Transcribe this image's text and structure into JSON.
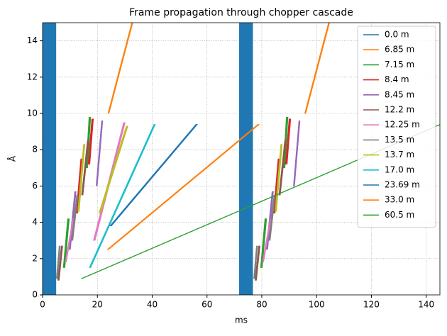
{
  "chart_data": {
    "type": "polygon",
    "title": "Frame propagation through chopper cascade",
    "xlabel": "ms",
    "ylabel": "Å",
    "xlim": [
      0,
      145
    ],
    "ylim": [
      0,
      15
    ],
    "xticks": [
      0,
      20,
      40,
      60,
      80,
      100,
      120,
      140
    ],
    "yticks": [
      0,
      2,
      4,
      6,
      8,
      10,
      12,
      14
    ],
    "grid": true,
    "legend": "upper right",
    "series": [
      {
        "name": "0.0 m",
        "color": "#1f77b4",
        "polygons": [
          {
            "x": [
              0,
              4.9,
              4.9,
              0
            ],
            "y": [
              0,
              0,
              15,
              15
            ]
          },
          {
            "x": [
              71.8,
              76.7,
              76.7,
              71.8
            ],
            "y": [
              0,
              0,
              15,
              15
            ]
          }
        ]
      },
      {
        "name": "6.85 m",
        "color": "#ff7f0e",
        "polygons": [
          {
            "x": [
              23.8,
              24.3,
              29.5,
              29.0
            ],
            "y": [
              10,
              10,
              13,
              13
            ]
          },
          {
            "x": [
              29.0,
              29.5,
              33.0,
              32.5
            ],
            "y": [
              13,
              13,
              15,
              15
            ]
          },
          {
            "x": [
              95.6,
              96.1,
              101.3,
              100.8
            ],
            "y": [
              10,
              10,
              13,
              13
            ]
          },
          {
            "x": [
              100.8,
              101.3,
              104.8,
              104.3
            ],
            "y": [
              13,
              13,
              15,
              15
            ]
          }
        ]
      },
      {
        "name": "7.15 m",
        "color": "#2ca02c",
        "polygons": [
          {
            "x": [
              7.5,
              8.2,
              9.8,
              9.1
            ],
            "y": [
              1.5,
              1.5,
              4.2,
              4.2
            ]
          },
          {
            "x": [
              15.8,
              16.5,
              17.6,
              16.9
            ],
            "y": [
              7.0,
              7.0,
              9.8,
              9.8
            ]
          },
          {
            "x": [
              79.5,
              80.2,
              81.8,
              81.1
            ],
            "y": [
              1.5,
              1.5,
              4.2,
              4.2
            ]
          },
          {
            "x": [
              87.8,
              88.5,
              89.6,
              88.9
            ],
            "y": [
              7.0,
              7.0,
              9.8,
              9.8
            ]
          }
        ]
      },
      {
        "name": "8.4 m",
        "color": "#d62728",
        "polygons": [
          {
            "x": [
              12.2,
              12.9,
              14.6,
              13.9
            ],
            "y": [
              4.5,
              4.5,
              7.5,
              7.5
            ]
          },
          {
            "x": [
              16.6,
              17.3,
              18.6,
              17.9
            ],
            "y": [
              7.2,
              7.2,
              9.7,
              9.7
            ]
          },
          {
            "x": [
              84.2,
              84.9,
              86.6,
              85.9
            ],
            "y": [
              4.5,
              4.5,
              7.5,
              7.5
            ]
          },
          {
            "x": [
              88.6,
              89.3,
              90.6,
              89.9
            ],
            "y": [
              7.2,
              7.2,
              9.7,
              9.7
            ]
          }
        ]
      },
      {
        "name": "8.45 m",
        "color": "#9467bd",
        "polygons": [
          {
            "x": [
              9.6,
              10.2,
              12.3,
              11.7
            ],
            "y": [
              2.5,
              2.5,
              5.7,
              5.7
            ]
          },
          {
            "x": [
              19.5,
              20.0,
              22.0,
              21.5
            ],
            "y": [
              6.0,
              6.0,
              9.6,
              9.6
            ]
          },
          {
            "x": [
              81.6,
              82.2,
              84.3,
              83.7
            ],
            "y": [
              2.5,
              2.5,
              5.7,
              5.7
            ]
          },
          {
            "x": [
              91.5,
              92.0,
              94.0,
              93.5
            ],
            "y": [
              6.0,
              6.0,
              9.6,
              9.6
            ]
          }
        ]
      },
      {
        "name": "12.2 m",
        "color": "#8c564b",
        "polygons": [
          {
            "x": [
              5.5,
              6.1,
              7.4,
              6.8
            ],
            "y": [
              0.8,
              0.8,
              2.7,
              2.7
            ]
          },
          {
            "x": [
              14.2,
              14.8,
              16.9,
              16.3
            ],
            "y": [
              5.5,
              5.5,
              8.5,
              8.5
            ]
          },
          {
            "x": [
              77.5,
              78.1,
              79.4,
              78.8
            ],
            "y": [
              0.8,
              0.8,
              2.7,
              2.7
            ]
          },
          {
            "x": [
              86.2,
              86.8,
              88.9,
              88.3
            ],
            "y": [
              5.5,
              5.5,
              8.5,
              8.5
            ]
          }
        ]
      },
      {
        "name": "12.25 m",
        "color": "#e377c2",
        "polygons": [
          {
            "x": [
              8.2,
              8.7,
              11.5,
              11.0
            ],
            "y": [
              1.8,
              1.8,
              4.2,
              4.2
            ]
          },
          {
            "x": [
              18.5,
              19.2,
              30.2,
              29.5
            ],
            "y": [
              3.0,
              3.0,
              9.5,
              9.5
            ]
          },
          {
            "x": [
              80.2,
              80.7,
              83.5,
              83.0
            ],
            "y": [
              1.8,
              1.8,
              4.2,
              4.2
            ]
          }
        ]
      },
      {
        "name": "13.5 m",
        "color": "#7f7f7f",
        "polygons": [
          {
            "x": [
              5.0,
              5.5,
              6.5,
              6.0
            ],
            "y": [
              0.9,
              0.9,
              2.7,
              2.7
            ]
          },
          {
            "x": [
              10.5,
              11.1,
              13.0,
              12.4
            ],
            "y": [
              3.0,
              3.0,
              5.5,
              5.5
            ]
          },
          {
            "x": [
              77.0,
              77.5,
              78.5,
              78.0
            ],
            "y": [
              0.9,
              0.9,
              2.7,
              2.7
            ]
          },
          {
            "x": [
              82.5,
              83.1,
              85.0,
              84.4
            ],
            "y": [
              3.0,
              3.0,
              5.5,
              5.5
            ]
          }
        ]
      },
      {
        "name": "13.7 m",
        "color": "#bcbd22",
        "polygons": [
          {
            "x": [
              12.8,
              13.4,
              15.5,
              14.9
            ],
            "y": [
              4.6,
              4.6,
              8.3,
              8.3
            ]
          },
          {
            "x": [
              20.5,
              21.2,
              31.2,
              30.5
            ],
            "y": [
              4.5,
              4.5,
              9.3,
              9.3
            ]
          },
          {
            "x": [
              84.8,
              85.4,
              87.5,
              86.9
            ],
            "y": [
              4.6,
              4.6,
              8.3,
              8.3
            ]
          }
        ]
      },
      {
        "name": "17.0 m",
        "color": "#17becf",
        "polygons": [
          {
            "x": [
              17.0,
              17.6,
              41.2,
              40.6
            ],
            "y": [
              1.5,
              1.5,
              9.4,
              9.4
            ]
          }
        ]
      },
      {
        "name": "23.69 m",
        "color": "#1f77b4",
        "polygons": [
          {
            "x": [
              24.5,
              25.2,
              56.6,
              55.9
            ],
            "y": [
              3.8,
              3.8,
              9.4,
              9.4
            ]
          }
        ]
      },
      {
        "name": "33.0 m",
        "color": "#ff7f0e",
        "polygons": [
          {
            "x": [
              23.5,
              24.2,
              79.2,
              78.5
            ],
            "y": [
              2.5,
              2.5,
              9.4,
              9.4
            ]
          }
        ]
      },
      {
        "name": "60.5 m",
        "color": "#2ca02c",
        "polygons": [
          {
            "x": [
              14.0,
              14.6,
              145.6,
              145.0
            ],
            "y": [
              0.9,
              0.9,
              9.4,
              9.4
            ]
          }
        ]
      }
    ]
  }
}
